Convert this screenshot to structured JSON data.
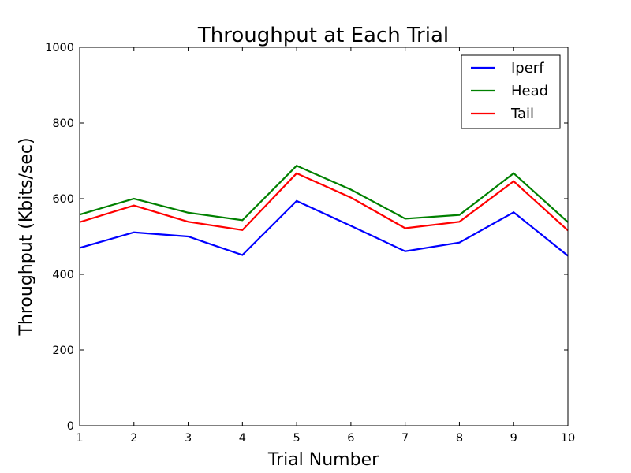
{
  "chart_data": {
    "type": "line",
    "title": "Throughput at Each Trial",
    "xlabel": "Trial Number",
    "ylabel": "Throughput (Kbits/sec)",
    "x": [
      1,
      2,
      3,
      4,
      5,
      6,
      7,
      8,
      9,
      10
    ],
    "xlim": [
      1,
      10
    ],
    "ylim": [
      0,
      1000
    ],
    "xticks": [
      1,
      2,
      3,
      4,
      5,
      6,
      7,
      8,
      9,
      10
    ],
    "yticks": [
      0,
      200,
      400,
      600,
      800,
      1000
    ],
    "grid": false,
    "legend_position": "top-right",
    "series": [
      {
        "name": "Iperf",
        "color": "#0000ff",
        "values": [
          470,
          511,
          500,
          451,
          594,
          528,
          461,
          484,
          564,
          449
        ]
      },
      {
        "name": "Head",
        "color": "#008000",
        "values": [
          558,
          600,
          563,
          543,
          687,
          624,
          547,
          557,
          667,
          538
        ]
      },
      {
        "name": "Tail",
        "color": "#ff0000",
        "values": [
          538,
          582,
          539,
          517,
          667,
          603,
          522,
          539,
          646,
          516
        ]
      }
    ]
  }
}
